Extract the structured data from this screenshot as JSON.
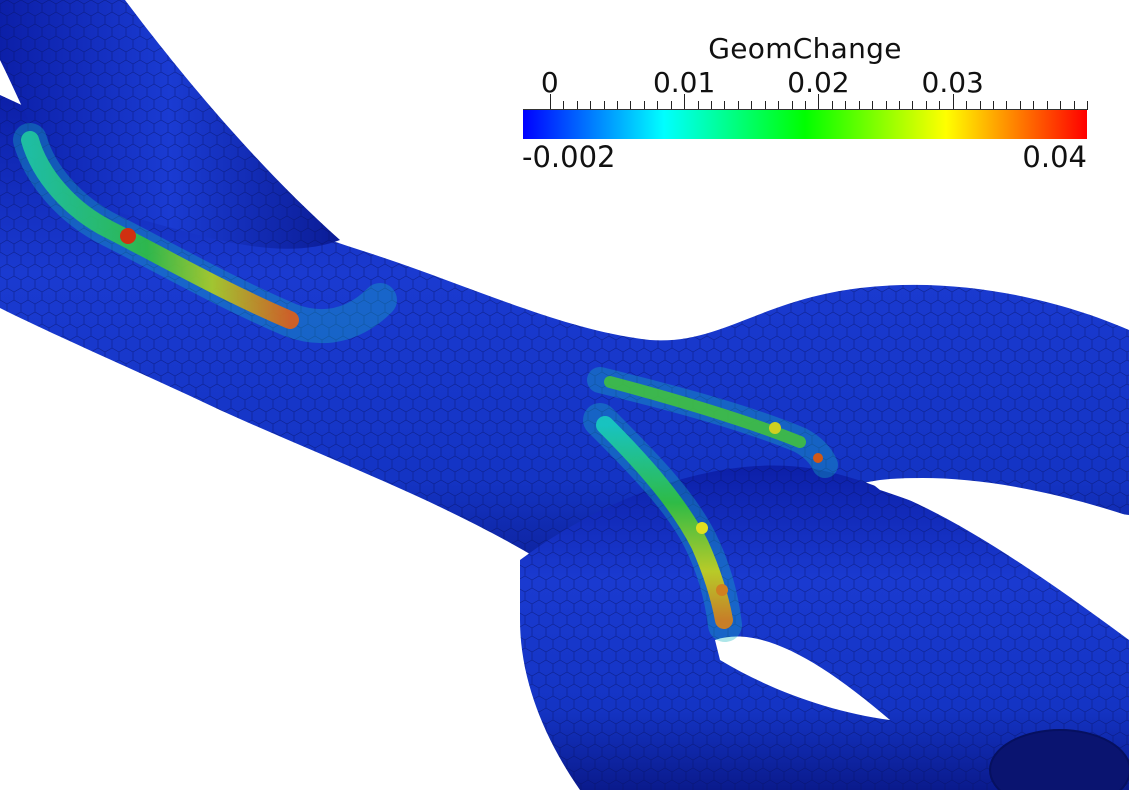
{
  "legend": {
    "title": "GeomChange",
    "min_label": "-0.002",
    "max_label": "0.04",
    "range": [
      -0.002,
      0.04
    ],
    "ticks": [
      {
        "value": 0,
        "label": "0"
      },
      {
        "value": 0.01,
        "label": "0.01"
      },
      {
        "value": 0.02,
        "label": "0.02"
      },
      {
        "value": 0.03,
        "label": "0.03"
      }
    ],
    "colormap": [
      "#0000ff",
      "#00ffff",
      "#00ff00",
      "#ffff00",
      "#ff0000"
    ]
  },
  "colors": {
    "surface_base": "#1030c8",
    "surface_dark": "#0a1a8a",
    "mesh_edge": "#061060"
  }
}
